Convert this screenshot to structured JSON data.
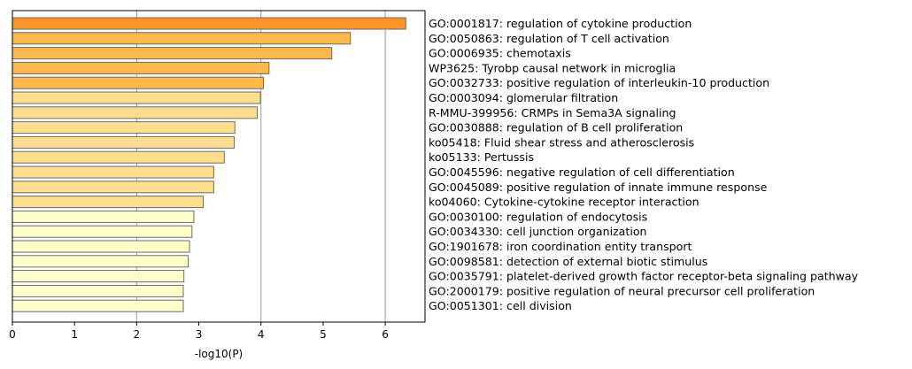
{
  "chart_data": {
    "type": "bar",
    "orientation": "horizontal",
    "title": "",
    "xlabel": "-log10(P)",
    "ylabel": "",
    "xlim": [
      0,
      6.64
    ],
    "xticks": [
      0,
      1,
      2,
      3,
      4,
      5,
      6
    ],
    "grid": "vertical at 2, 4, 6",
    "categories": [
      "GO:0001817: regulation of cytokine production",
      "GO:0050863: regulation of T cell activation",
      "GO:0006935: chemotaxis",
      "WP3625: Tyrobp causal network in microglia",
      "GO:0032733: positive regulation of interleukin-10 production",
      "GO:0003094: glomerular filtration",
      "R-MMU-399956: CRMPs in Sema3A signaling",
      "GO:0030888: regulation of B cell proliferation",
      "ko05418: Fluid shear stress and atherosclerosis",
      "ko05133: Pertussis",
      "GO:0045596: negative regulation of cell differentiation",
      "GO:0045089: positive regulation of innate immune response",
      "ko04060: Cytokine-cytokine receptor interaction",
      "GO:0030100: regulation of endocytosis",
      "GO:0034330: cell junction organization",
      "GO:1901678: iron coordination entity transport",
      "GO:0098581: detection of external biotic stimulus",
      "GO:0035791: platelet-derived growth factor receptor-beta signaling pathway",
      "GO:2000179: positive regulation of neural precursor cell proliferation",
      "GO:0051301: cell division"
    ],
    "values": [
      6.33,
      5.44,
      5.14,
      4.13,
      4.04,
      3.99,
      3.94,
      3.58,
      3.57,
      3.41,
      3.24,
      3.24,
      3.07,
      2.92,
      2.89,
      2.85,
      2.83,
      2.76,
      2.75,
      2.75
    ],
    "bar_colors": [
      "#fb9326",
      "#fdb84c",
      "#fdb84c",
      "#fdb84c",
      "#fdb84c",
      "#fedf8f",
      "#fedf8f",
      "#fedf8f",
      "#fedf8f",
      "#fedf8f",
      "#fedf8f",
      "#fedf8f",
      "#fedf8f",
      "#ffffcc",
      "#ffffcc",
      "#ffffcc",
      "#ffffcc",
      "#ffffcc",
      "#ffffcc",
      "#ffffcc"
    ]
  }
}
